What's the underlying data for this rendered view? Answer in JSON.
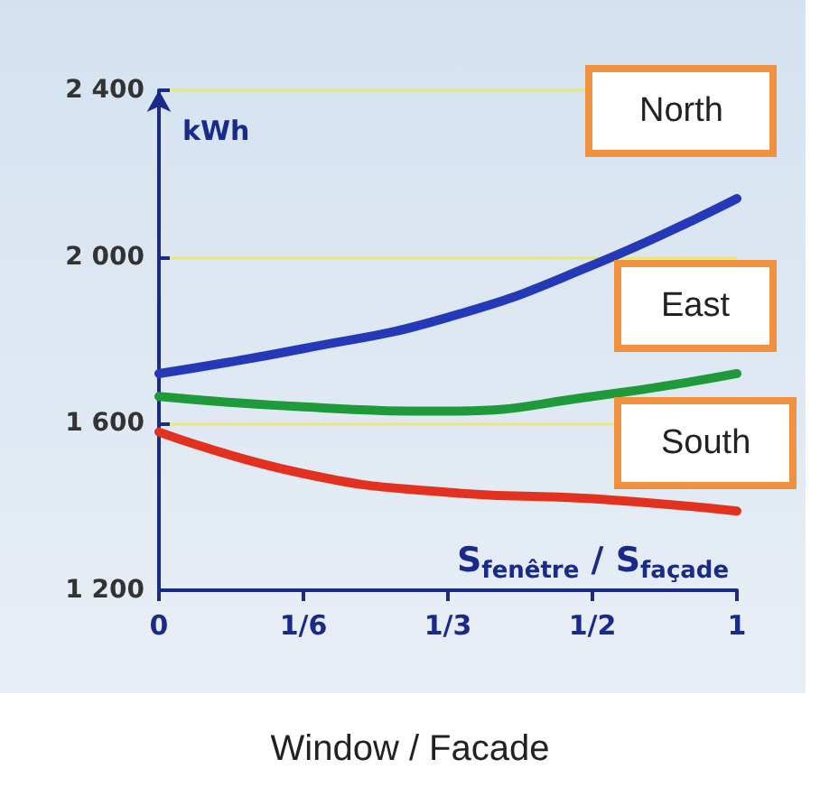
{
  "chart_data": {
    "type": "line",
    "xlabel": "S$_{fenêtre}$ / S$_{façade}$",
    "ylabel": "kWh",
    "categories": [
      "0",
      "1/6",
      "1/3",
      "1/2",
      "1"
    ],
    "series": [
      {
        "name": "North",
        "color": "#2438b8",
        "values": [
          1720,
          1780,
          1855,
          1980,
          2140
        ]
      },
      {
        "name": "East",
        "color": "#1f9a3a",
        "values": [
          1665,
          1640,
          1630,
          1665,
          1720
        ]
      },
      {
        "name": "South",
        "color": "#e2321f",
        "values": [
          1580,
          1480,
          1435,
          1420,
          1390
        ]
      }
    ],
    "ylim": [
      1200,
      2400
    ],
    "yticks": [
      {
        "value": 1200,
        "label": "1 200"
      },
      {
        "value": 1600,
        "label": "1 600"
      },
      {
        "value": 2000,
        "label": "2 000"
      },
      {
        "value": 2400,
        "label": "2 400"
      }
    ],
    "grid": "y",
    "marker": "none",
    "line_style": "solid",
    "annotations": [
      "Window / Facade"
    ]
  }
}
